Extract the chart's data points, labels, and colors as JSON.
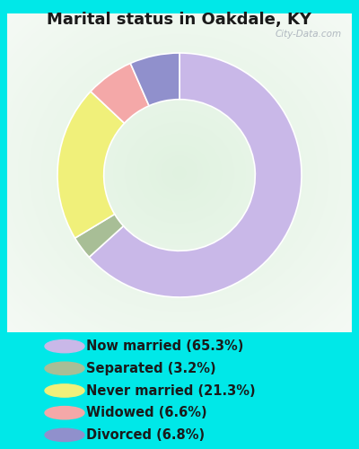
{
  "title": "Marital status in Oakdale, KY",
  "slices": [
    65.3,
    3.2,
    21.3,
    6.6,
    6.8
  ],
  "labels": [
    "Now married (65.3%)",
    "Separated (3.2%)",
    "Never married (21.3%)",
    "Widowed (6.6%)",
    "Divorced (6.8%)"
  ],
  "colors": [
    "#c9b8e8",
    "#a8be96",
    "#f0f07a",
    "#f4a8a8",
    "#9090cc"
  ],
  "bg_cyan": "#00e8e8",
  "chart_bg_tl": "#d8eed8",
  "chart_bg_tr": "#e8f4e8",
  "chart_bg_br": "#c8e4cc",
  "title_fontsize": 13,
  "legend_fontsize": 10.5,
  "watermark": "City-Data.com",
  "donut_width": 0.38,
  "startangle": 90
}
